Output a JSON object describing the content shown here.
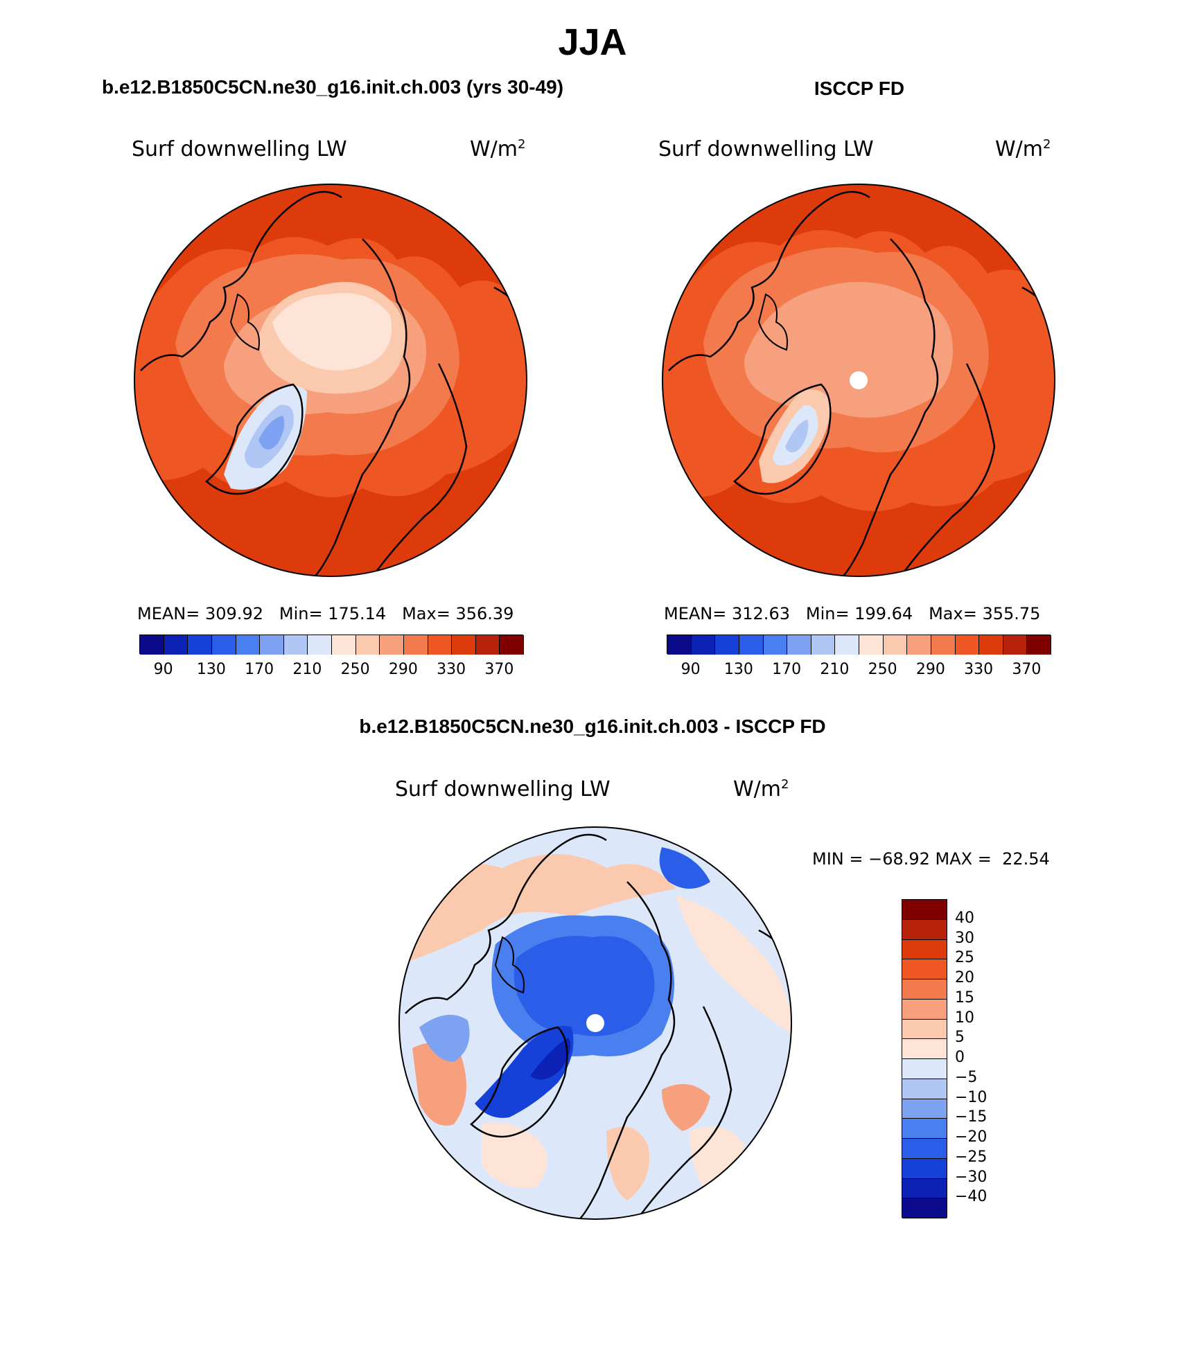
{
  "main_title": "JJA",
  "panels": [
    {
      "title": "b.e12.B1850C5CN.ne30_g16.init.ch.003 (yrs 30-49)",
      "variable": "Surf downwelling LW",
      "units": "W/m",
      "units_exp": "2",
      "stats": {
        "mean_label": "MEAN=",
        "mean": "309.92",
        "min_label": "Min=",
        "min": "175.14",
        "max_label": "Max=",
        "max": "356.39"
      }
    },
    {
      "title": "ISCCP FD",
      "variable": "Surf downwelling LW",
      "units": "W/m",
      "units_exp": "2",
      "stats": {
        "mean_label": "MEAN=",
        "mean": "312.63",
        "min_label": "Min=",
        "min": "199.64",
        "max_label": "Max=",
        "max": "355.75"
      }
    },
    {
      "title": "b.e12.B1850C5CN.ne30_g16.init.ch.003 - ISCCP FD",
      "variable": "Surf downwelling LW",
      "units": "W/m",
      "units_exp": "2",
      "minmax_text": "MIN = −68.92 MAX =  22.54"
    }
  ],
  "colorbar_horizontal": {
    "colors": [
      "#0a0a8a",
      "#0b22b5",
      "#1541d9",
      "#2a5ee8",
      "#4a7ff0",
      "#7ea2f2",
      "#b0c6f5",
      "#dce8fa",
      "#fde4d6",
      "#fbc9ae",
      "#f6a07d",
      "#f37a4d",
      "#ee5724",
      "#dd3b0c",
      "#b7230a",
      "#800000"
    ],
    "tick_labels": [
      "90",
      "130",
      "170",
      "210",
      "250",
      "290",
      "330",
      "370"
    ]
  },
  "colorbar_vertical": {
    "colors": [
      "#800000",
      "#b7230a",
      "#dd3b0c",
      "#ee5724",
      "#f37a4d",
      "#f6a07d",
      "#fbc9ae",
      "#fde4d6",
      "#dce8fa",
      "#b0c6f5",
      "#7ea2f2",
      "#4a7ff0",
      "#2a5ee8",
      "#1541d9",
      "#0b22b5",
      "#0a0a8a"
    ],
    "tick_labels": [
      "40",
      "30",
      "25",
      "20",
      "15",
      "10",
      "5",
      "0",
      "−5",
      "−10",
      "−15",
      "−20",
      "−25",
      "−30",
      "−40"
    ]
  },
  "map_colors": {
    "warm1": "#dd3b0c",
    "warm2": "#ee5724",
    "warm3": "#f37a4d",
    "warm4": "#f6a07d",
    "warm5": "#fbc9ae",
    "warm6": "#fde4d6",
    "cool1": "#dce8fa",
    "cool2": "#b0c6f5",
    "cool3": "#7ea2f2",
    "cool4": "#2a5ee8",
    "cool5": "#1541d9",
    "cool6": "#0b22b5"
  }
}
